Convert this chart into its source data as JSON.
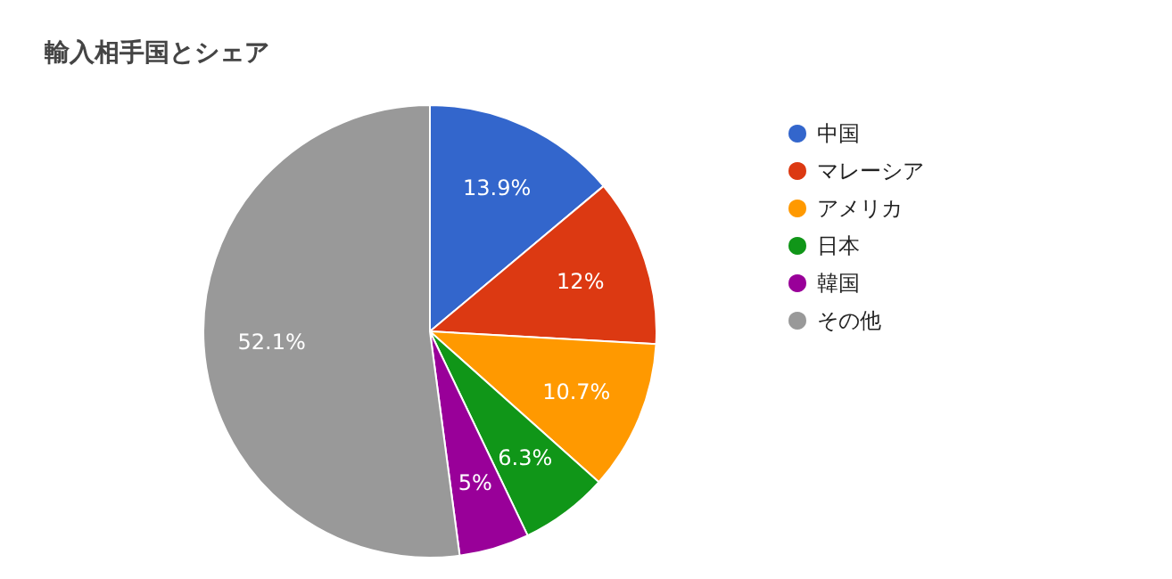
{
  "chart_data": {
    "type": "pie",
    "title": "輸入相手国とシェア",
    "categories": [
      "中国",
      "マレーシア",
      "アメリカ",
      "日本",
      "韓国",
      "その他"
    ],
    "values": [
      13.9,
      12,
      10.7,
      6.3,
      5,
      52.1
    ],
    "colors": [
      "#3366cc",
      "#dc3912",
      "#ff9900",
      "#109618",
      "#990099",
      "#999999"
    ],
    "value_labels": [
      "13.9%",
      "12%",
      "10.7%",
      "6.3%",
      "5%",
      "52.1%"
    ],
    "legend": "right"
  }
}
